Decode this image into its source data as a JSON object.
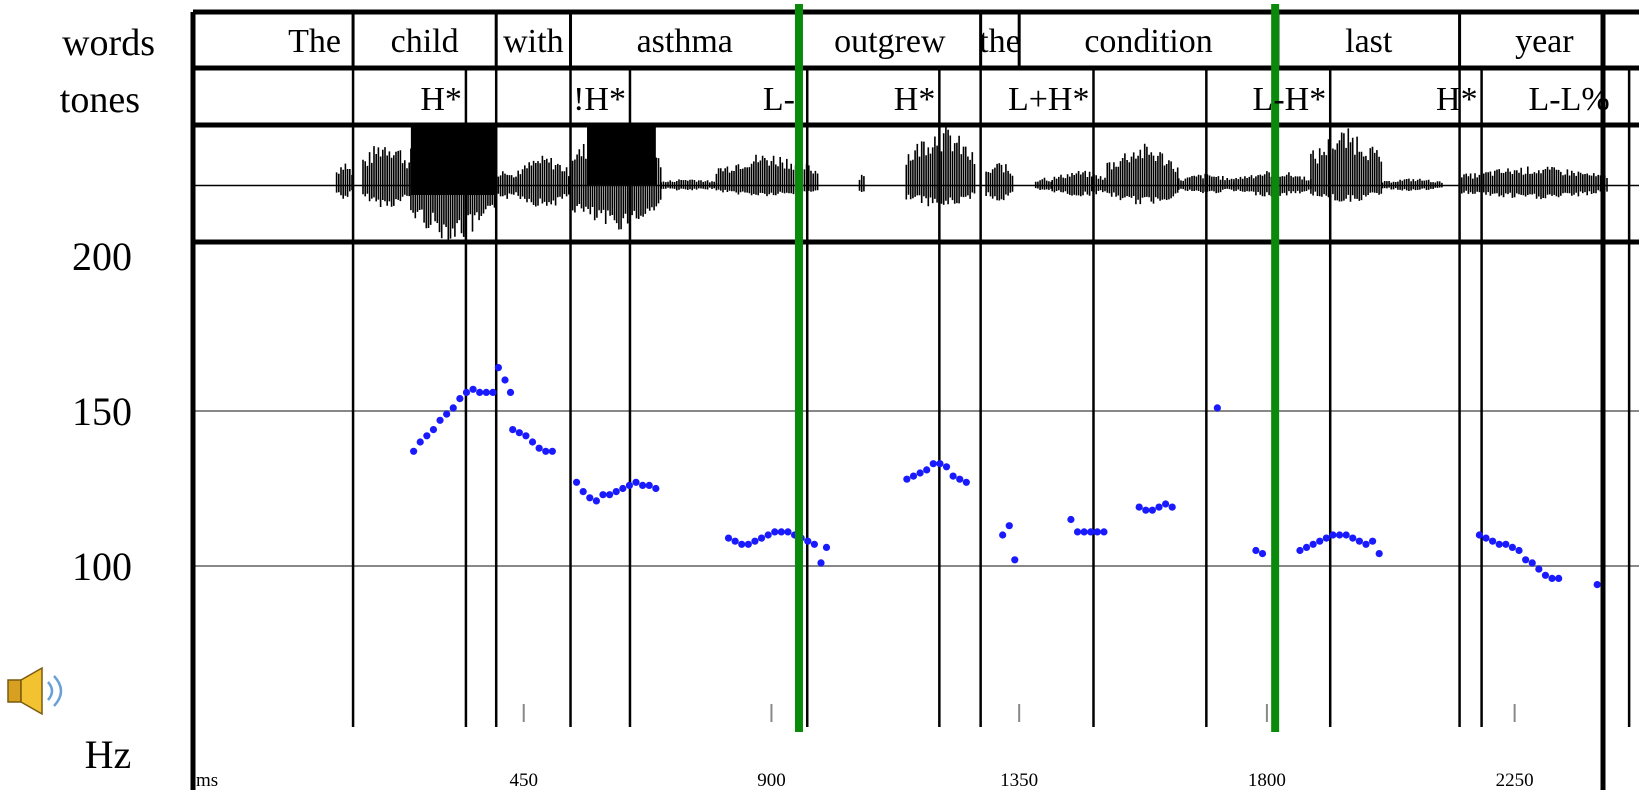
{
  "chart_data": {
    "type": "scatter",
    "title": "",
    "xlabel": "ms",
    "ylabel": "Hz",
    "xlim": [
      0,
      2512
    ],
    "ylim": [
      50,
      200
    ],
    "row_labels": [
      "words",
      "tones"
    ],
    "y_ticks": [
      100,
      150,
      200
    ],
    "x_ticks": [
      450,
      900,
      1350,
      1800,
      2250
    ],
    "gridlines_hz": [
      100,
      150
    ],
    "colors": {
      "pitch": "#1a1aff",
      "phrase_boundary": "#0a8a0a",
      "frame": "#000000",
      "grid": "#888888"
    },
    "words": [
      {
        "text": "The",
        "start": 0,
        "end": 140
      },
      {
        "text": "child",
        "start": 140,
        "end": 400
      },
      {
        "text": "with",
        "start": 400,
        "end": 535
      },
      {
        "text": "asthma",
        "start": 535,
        "end": 950
      },
      {
        "text": "outgrew",
        "start": 950,
        "end": 1280
      },
      {
        "text": "the",
        "start": 1280,
        "end": 1350
      },
      {
        "text": "condition",
        "start": 1350,
        "end": 1820
      },
      {
        "text": "last",
        "start": 1820,
        "end": 2150
      },
      {
        "text": "year",
        "start": 2150,
        "end": 2458
      }
    ],
    "tones": [
      {
        "text": "H*",
        "time": 345
      },
      {
        "text": "!H*",
        "time": 643
      },
      {
        "text": "L-",
        "time": 950
      },
      {
        "text": "H*",
        "time": 1205
      },
      {
        "text": "L+H*",
        "time": 1485
      },
      {
        "text": "L-H*",
        "time": 1915
      },
      {
        "text": "H*",
        "time": 2190
      },
      {
        "text": "L-L%",
        "time": 2430
      }
    ],
    "tone_boundaries": [
      140,
      345,
      400,
      535,
      643,
      965,
      1205,
      1280,
      1485,
      1690,
      1915,
      2150,
      2190,
      2458
    ],
    "phrase_boundaries": [
      950,
      1815
    ],
    "pitch_hz": [
      [
        250,
        137
      ],
      [
        262,
        140
      ],
      [
        274,
        142
      ],
      [
        286,
        144
      ],
      [
        298,
        147
      ],
      [
        310,
        149
      ],
      [
        322,
        151
      ],
      [
        334,
        154
      ],
      [
        346,
        156
      ],
      [
        358,
        157
      ],
      [
        370,
        156
      ],
      [
        382,
        156
      ],
      [
        394,
        156
      ],
      [
        404,
        164
      ],
      [
        416,
        160
      ],
      [
        426,
        156
      ],
      [
        430,
        144
      ],
      [
        442,
        143
      ],
      [
        454,
        142
      ],
      [
        466,
        140
      ],
      [
        478,
        138
      ],
      [
        490,
        137
      ],
      [
        502,
        137
      ],
      [
        546,
        127
      ],
      [
        558,
        124
      ],
      [
        570,
        122
      ],
      [
        582,
        121
      ],
      [
        594,
        123
      ],
      [
        606,
        123
      ],
      [
        618,
        124
      ],
      [
        630,
        125
      ],
      [
        642,
        126
      ],
      [
        654,
        127
      ],
      [
        666,
        126
      ],
      [
        678,
        126
      ],
      [
        690,
        125
      ],
      [
        822,
        109
      ],
      [
        834,
        108
      ],
      [
        846,
        107
      ],
      [
        858,
        107
      ],
      [
        870,
        108
      ],
      [
        882,
        109
      ],
      [
        894,
        110
      ],
      [
        906,
        111
      ],
      [
        918,
        111
      ],
      [
        930,
        111
      ],
      [
        942,
        110
      ],
      [
        954,
        109
      ],
      [
        966,
        108
      ],
      [
        978,
        107
      ],
      [
        990,
        101
      ],
      [
        1000,
        106
      ],
      [
        1146,
        128
      ],
      [
        1158,
        129
      ],
      [
        1170,
        130
      ],
      [
        1182,
        131
      ],
      [
        1194,
        133
      ],
      [
        1206,
        133
      ],
      [
        1218,
        132
      ],
      [
        1230,
        129
      ],
      [
        1242,
        128
      ],
      [
        1254,
        127
      ],
      [
        1320,
        110
      ],
      [
        1332,
        113
      ],
      [
        1342,
        102
      ],
      [
        1444,
        115
      ],
      [
        1456,
        111
      ],
      [
        1468,
        111
      ],
      [
        1480,
        111
      ],
      [
        1492,
        111
      ],
      [
        1504,
        111
      ],
      [
        1568,
        119
      ],
      [
        1580,
        118
      ],
      [
        1592,
        118
      ],
      [
        1604,
        119
      ],
      [
        1616,
        120
      ],
      [
        1628,
        119
      ],
      [
        1710,
        151
      ],
      [
        1780,
        105
      ],
      [
        1792,
        104
      ],
      [
        1860,
        105
      ],
      [
        1872,
        106
      ],
      [
        1884,
        107
      ],
      [
        1896,
        108
      ],
      [
        1908,
        109
      ],
      [
        1920,
        110
      ],
      [
        1932,
        110
      ],
      [
        1944,
        110
      ],
      [
        1956,
        109
      ],
      [
        1968,
        108
      ],
      [
        1980,
        107
      ],
      [
        1992,
        108
      ],
      [
        2004,
        104
      ],
      [
        2186,
        110
      ],
      [
        2198,
        109
      ],
      [
        2210,
        108
      ],
      [
        2222,
        107
      ],
      [
        2234,
        107
      ],
      [
        2246,
        106
      ],
      [
        2258,
        105
      ],
      [
        2270,
        102
      ],
      [
        2282,
        101
      ],
      [
        2294,
        99
      ],
      [
        2306,
        97
      ],
      [
        2318,
        96
      ],
      [
        2330,
        96
      ],
      [
        2400,
        94
      ]
    ]
  }
}
